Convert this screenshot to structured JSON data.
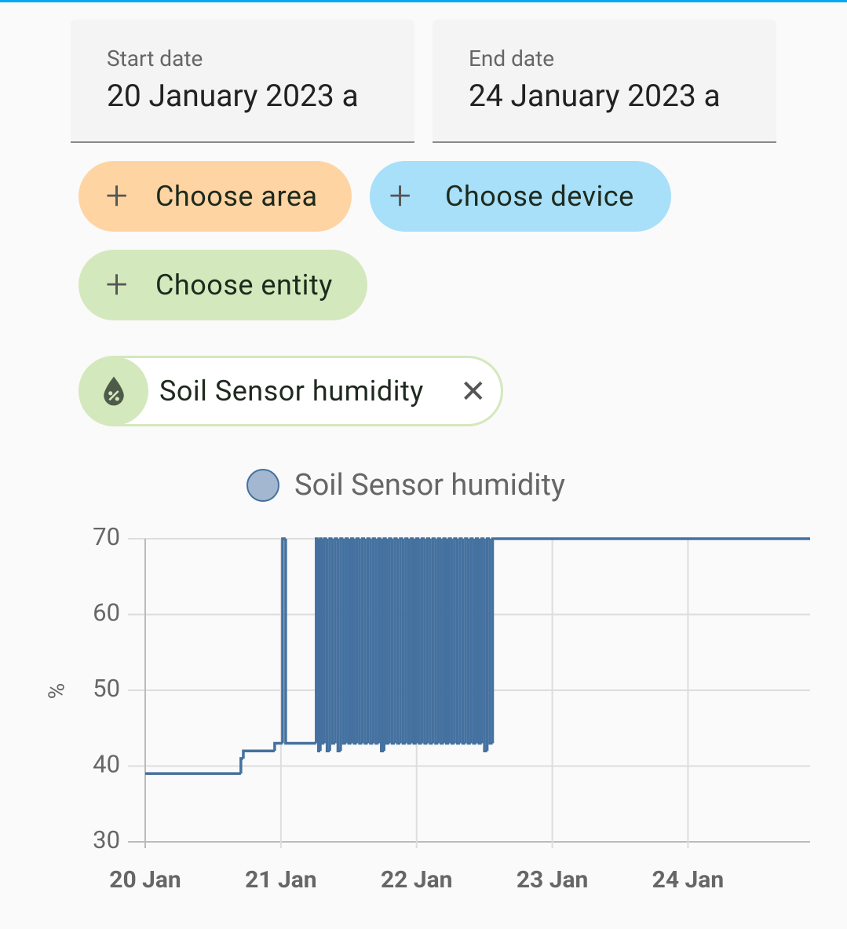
{
  "date_range": {
    "start": {
      "label": "Start date",
      "value": "20 January 2023 a"
    },
    "end": {
      "label": "End date",
      "value": "24 January 2023 a"
    }
  },
  "target_picker": {
    "area": "Choose area",
    "device": "Choose device",
    "entity": "Choose entity"
  },
  "selected_entity": "Soil Sensor humidity",
  "chart_data": {
    "type": "step-line",
    "y_axis_label": "%",
    "x": [
      20,
      20.705,
      20.723,
      20.954,
      21.012,
      21.035,
      21.26,
      21.277,
      21.29,
      21.305,
      21.32,
      21.34,
      21.36,
      21.38,
      21.4,
      21.42,
      21.44,
      21.46,
      21.48,
      21.5,
      21.52,
      21.54,
      21.56,
      21.58,
      21.6,
      21.62,
      21.64,
      21.66,
      21.68,
      21.7,
      21.72,
      21.74,
      21.76,
      21.78,
      21.8,
      21.82,
      21.84,
      21.86,
      21.88,
      21.9,
      21.92,
      21.94,
      21.96,
      21.98,
      22,
      22.02,
      22.04,
      22.06,
      22.08,
      22.1,
      22.12,
      22.14,
      22.16,
      22.18,
      22.2,
      22.22,
      22.24,
      22.26,
      22.28,
      22.3,
      22.32,
      22.34,
      22.36,
      22.38,
      22.4,
      22.42,
      22.44,
      22.46,
      22.48,
      22.5,
      22.52,
      22.54,
      22.56,
      22.57,
      24.9
    ],
    "series": [
      {
        "name": "Soil Sensor humidity",
        "color": "#44719f",
        "values": [
          39,
          41,
          42,
          43,
          70,
          43,
          70,
          42,
          70,
          43,
          70,
          42,
          70,
          43,
          70,
          42,
          70,
          43,
          70,
          43,
          70,
          43,
          70,
          43,
          70,
          43,
          70,
          43,
          70,
          43,
          70,
          42,
          70,
          43,
          70,
          43,
          70,
          43,
          70,
          43,
          70,
          43,
          70,
          43,
          70,
          43,
          70,
          43,
          70,
          43,
          70,
          43,
          70,
          43,
          70,
          43,
          70,
          43,
          70,
          43,
          70,
          43,
          70,
          43,
          70,
          43,
          70,
          43,
          70,
          42,
          70,
          43,
          70,
          70,
          70
        ]
      }
    ],
    "xlim": [
      20,
      24.9
    ],
    "xticks": [
      {
        "value": 20,
        "label": "20 Jan"
      },
      {
        "value": 21,
        "label": "21 Jan"
      },
      {
        "value": 22,
        "label": "22 Jan"
      },
      {
        "value": 23,
        "label": "23 Jan"
      },
      {
        "value": 24,
        "label": "24 Jan"
      }
    ],
    "ylim": [
      30,
      70
    ],
    "yticks": [
      30,
      40,
      50,
      60,
      70
    ],
    "grid": true
  }
}
